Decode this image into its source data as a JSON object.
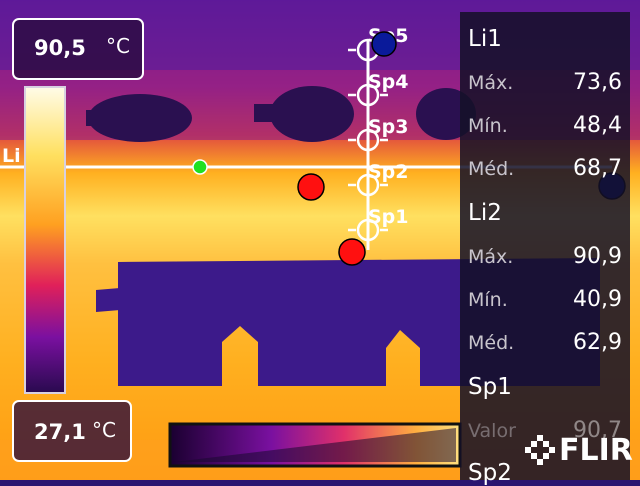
{
  "temperature_scale": {
    "max_value": "90,5",
    "max_unit": "°C",
    "min_value": "27,1",
    "min_unit": "°C"
  },
  "line_tool": {
    "label": "Li"
  },
  "spots": [
    {
      "label": "Sp5"
    },
    {
      "label": "Sp4"
    },
    {
      "label": "Sp3"
    },
    {
      "label": "Sp2"
    },
    {
      "label": "Sp1"
    }
  ],
  "measurements": {
    "li1": {
      "title": "Li1",
      "max_label": "Máx.",
      "max_value": "73,6",
      "min_label": "Mín.",
      "min_value": "48,4",
      "avg_label": "Méd.",
      "avg_value": "68,7"
    },
    "li2": {
      "title": "Li2",
      "max_label": "Máx.",
      "max_value": "90,9",
      "min_label": "Mín.",
      "min_value": "40,9",
      "avg_label": "Méd.",
      "avg_value": "62,9"
    },
    "sp1": {
      "title": "Sp1",
      "value_label": "Valor",
      "value": "90,7"
    },
    "sp2": {
      "title": "Sp2"
    }
  },
  "brand": {
    "name": "FLIR"
  },
  "colors": {
    "hot_marker": "#ff1010",
    "cold_marker": "#0a1a9a",
    "line_marker": "#20e020",
    "overlay_text": "#ffffff"
  }
}
